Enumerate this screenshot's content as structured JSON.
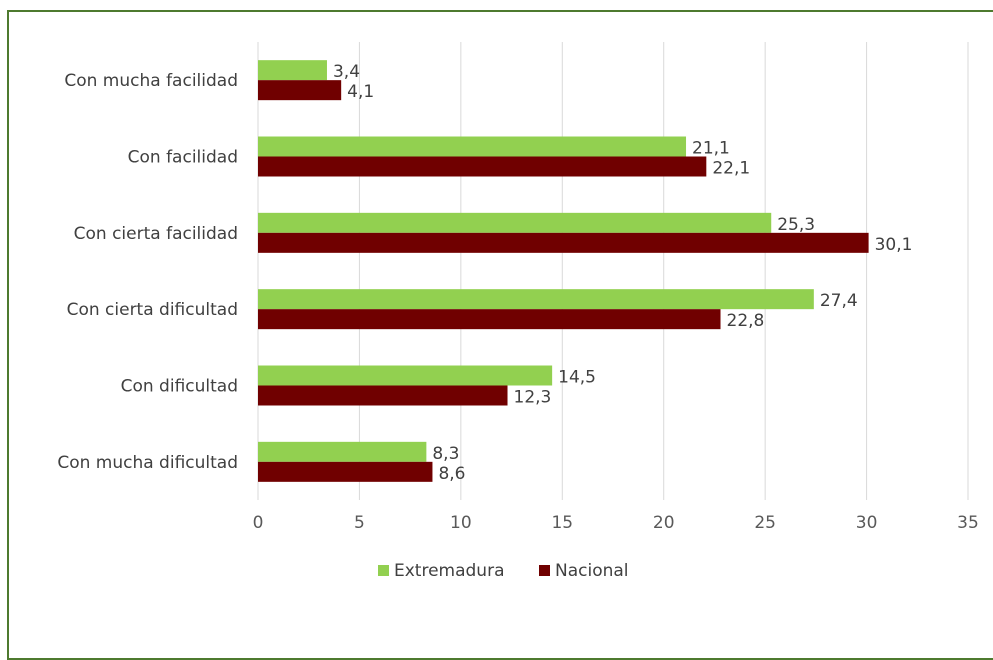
{
  "chart_data": {
    "type": "bar",
    "orientation": "horizontal",
    "categories": [
      "Con mucha facilidad",
      "Con facilidad",
      "Con cierta facilidad",
      "Con cierta dificultad",
      "Con dificultad",
      "Con mucha dificultad"
    ],
    "series": [
      {
        "name": "Extremadura",
        "color": "#92d050",
        "values": [
          3.4,
          21.1,
          25.3,
          27.4,
          14.5,
          8.3
        ],
        "labels": [
          "3,4",
          "21,1",
          "25,3",
          "27,4",
          "14,5",
          "8,3"
        ]
      },
      {
        "name": "Nacional",
        "color": "#700000",
        "values": [
          4.1,
          22.1,
          30.1,
          22.8,
          12.3,
          8.6
        ],
        "labels": [
          "4,1",
          "22,1",
          "30,1",
          "22,8",
          "12,3",
          "8,6"
        ]
      }
    ],
    "xlim": [
      0,
      35
    ],
    "xticks": [
      "0",
      "5",
      "10",
      "15",
      "20",
      "25",
      "30",
      "35"
    ],
    "grid": true,
    "legend": "bottom",
    "title": "",
    "xlabel": "",
    "ylabel": ""
  }
}
